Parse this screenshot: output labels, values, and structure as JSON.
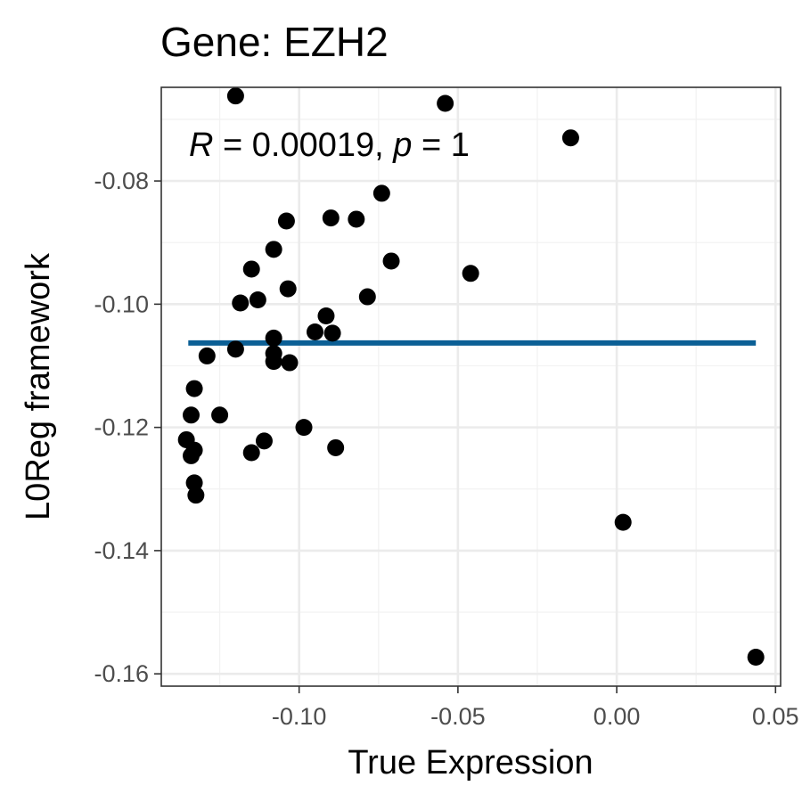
{
  "chart_data": {
    "type": "scatter",
    "title": "Gene: EZH2",
    "xlabel": "True Expression",
    "ylabel": "L0Reg framework",
    "xlim": [
      -0.1434,
      0.0516
    ],
    "ylim": [
      -0.162,
      -0.0648
    ],
    "x_ticks": [
      -0.1,
      -0.05,
      0.0,
      0.05
    ],
    "x_tick_labels": [
      "-0.10",
      "-0.05",
      "0.00",
      "0.05"
    ],
    "y_ticks": [
      -0.16,
      -0.14,
      -0.12,
      -0.1,
      -0.08
    ],
    "y_tick_labels": [
      "-0.16",
      "-0.14",
      "-0.12",
      "-0.10",
      "-0.08"
    ],
    "grid": true,
    "annotation": {
      "r_label": "R",
      "r_text": " = 0.00019, ",
      "p_label": "p",
      "p_text": " = 1"
    },
    "regression_line": {
      "color": "#0b5f95",
      "x": [
        -0.1349,
        0.0438
      ],
      "y": [
        -0.1063,
        -0.1063
      ]
    },
    "point_color": "#000000",
    "points": [
      {
        "x": -0.12,
        "y": -0.0662
      },
      {
        "x": -0.054,
        "y": -0.0674
      },
      {
        "x": -0.0145,
        "y": -0.073
      },
      {
        "x": -0.074,
        "y": -0.082
      },
      {
        "x": -0.09,
        "y": -0.086
      },
      {
        "x": -0.082,
        "y": -0.0862
      },
      {
        "x": -0.104,
        "y": -0.0865
      },
      {
        "x": -0.108,
        "y": -0.0911
      },
      {
        "x": -0.071,
        "y": -0.093
      },
      {
        "x": -0.046,
        "y": -0.095
      },
      {
        "x": -0.115,
        "y": -0.0943
      },
      {
        "x": -0.1035,
        "y": -0.0975
      },
      {
        "x": -0.113,
        "y": -0.0993
      },
      {
        "x": -0.1185,
        "y": -0.0998
      },
      {
        "x": -0.0785,
        "y": -0.0988
      },
      {
        "x": -0.0915,
        "y": -0.1019
      },
      {
        "x": -0.095,
        "y": -0.1045
      },
      {
        "x": -0.0895,
        "y": -0.1047
      },
      {
        "x": -0.108,
        "y": -0.1055
      },
      {
        "x": -0.12,
        "y": -0.1073
      },
      {
        "x": -0.108,
        "y": -0.108
      },
      {
        "x": -0.129,
        "y": -0.1084
      },
      {
        "x": -0.108,
        "y": -0.1093
      },
      {
        "x": -0.103,
        "y": -0.1095
      },
      {
        "x": -0.133,
        "y": -0.1137
      },
      {
        "x": -0.134,
        "y": -0.118
      },
      {
        "x": -0.125,
        "y": -0.118
      },
      {
        "x": -0.0985,
        "y": -0.12
      },
      {
        "x": -0.1355,
        "y": -0.122
      },
      {
        "x": -0.111,
        "y": -0.1222
      },
      {
        "x": -0.133,
        "y": -0.1237
      },
      {
        "x": -0.115,
        "y": -0.1241
      },
      {
        "x": -0.134,
        "y": -0.1246
      },
      {
        "x": -0.0885,
        "y": -0.1233
      },
      {
        "x": -0.133,
        "y": -0.129
      },
      {
        "x": -0.1325,
        "y": -0.131
      },
      {
        "x": 0.002,
        "y": -0.1354
      },
      {
        "x": 0.0438,
        "y": -0.1573
      }
    ]
  }
}
